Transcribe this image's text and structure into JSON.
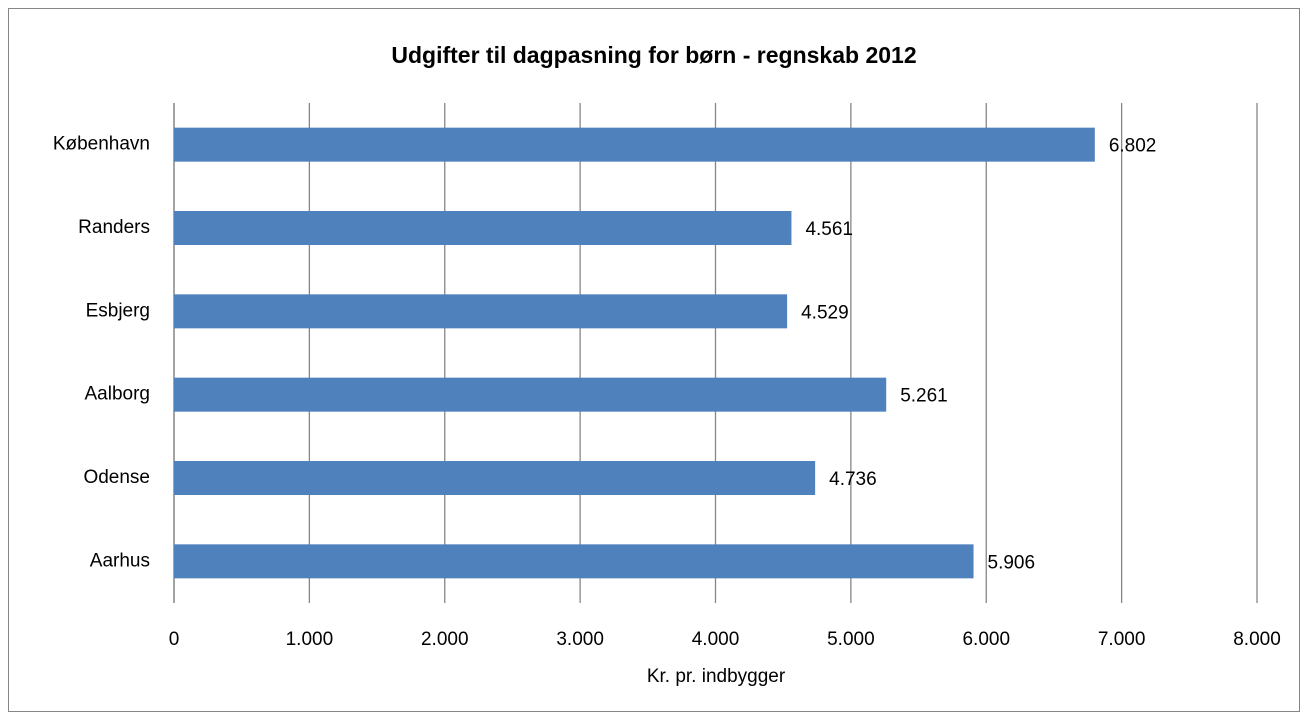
{
  "chart_data": {
    "type": "bar",
    "orientation": "horizontal",
    "title": "Udgifter til dagpasning for børn - regnskab 2012",
    "xlabel": "Kr. pr. indbygger",
    "categories": [
      "København",
      "Randers",
      "Esbjerg",
      "Aalborg",
      "Odense",
      "Aarhus"
    ],
    "values": [
      6802,
      4561,
      4529,
      5261,
      4736,
      5906
    ],
    "value_labels": [
      "6.802",
      "4.561",
      "4.529",
      "5.261",
      "4.736",
      "5.906"
    ],
    "color": "#4f81bd",
    "xlim": [
      0,
      8000
    ],
    "xticks": [
      0,
      {
        "value": 1000,
        "label": "1.000"
      },
      {
        "value": 2000,
        "label": "2.000"
      },
      {
        "value": 3000,
        "label": "3.000"
      },
      {
        "value": 4000,
        "label": "4.000"
      },
      {
        "value": 5000,
        "label": "5.000"
      },
      {
        "value": 6000,
        "label": "6.000"
      },
      {
        "value": 7000,
        "label": "7.000"
      },
      {
        "value": 8000,
        "label": "8.000"
      }
    ],
    "grid": true
  }
}
